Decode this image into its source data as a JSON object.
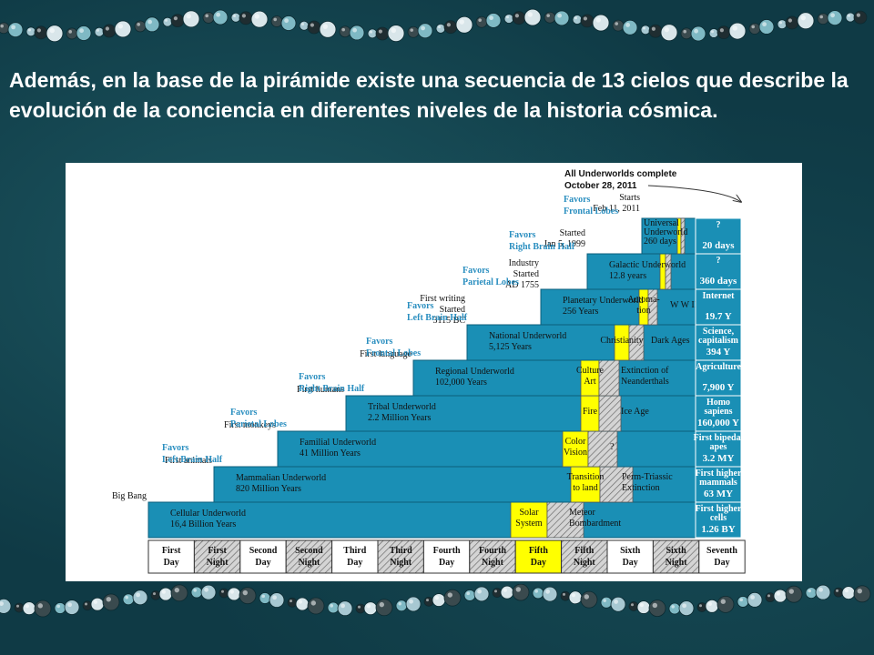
{
  "slide": {
    "title": "Además, en la base de la pirámide existe una secuencia de 13 cielos que describe la evolución de la conciencia en diferentes niveles de la historia cósmica."
  },
  "colors": {
    "background": "#0f3a45",
    "underworld_blue": "#1a8fb5",
    "day_yellow": "#ffff00",
    "night_gray": "#b0b0b0",
    "favors_text": "#2b8fc0",
    "bead_colors": [
      "#d9e6ea",
      "#3a4a4e",
      "#7fb9c4",
      "#a7c8d2",
      "#1f2d31"
    ]
  },
  "diagram": {
    "completion_note": [
      "All Underworlds complete",
      "October 28, 2011"
    ],
    "underworlds": [
      {
        "name": "Cellular Underworld",
        "duration": "16,4 Billion Years",
        "start": "Big Bang",
        "favors": ""
      },
      {
        "name": "Mammalian Underworld",
        "duration": "820 Million Years",
        "start": "First animals",
        "favors": [
          "Favors",
          "Left Brain Half"
        ]
      },
      {
        "name": "Familial Underworld",
        "duration": "41 Million Years",
        "start": "First monkeys",
        "favors": [
          "Favors",
          "Parietal Lobes"
        ]
      },
      {
        "name": "Tribal Underworld",
        "duration": "2.2 Million Years",
        "start": "First humans",
        "favors": [
          "Favors",
          "Right Brain Half"
        ]
      },
      {
        "name": "Regional Underworld",
        "duration": "102,000 Years",
        "start": "First language",
        "favors": [
          "Favors",
          "Frontal Lobes"
        ]
      },
      {
        "name": "National Underworld",
        "duration": "5,125 Years",
        "start": [
          "First writing",
          "Started",
          "3115 BC"
        ],
        "favors": [
          "Favors",
          "Left Brain Half"
        ]
      },
      {
        "name": "Planetary Underworld",
        "duration": "256 Years",
        "start": [
          "Industry",
          "Started",
          "AD 1755"
        ],
        "favors": [
          "Favors",
          "Parietal Lobes"
        ]
      },
      {
        "name": "Galactic Underworld",
        "duration": "12.8 years",
        "start": [
          "Started",
          "Jan 5, 1999"
        ],
        "favors": [
          "Favors",
          "Right Brain Half"
        ]
      },
      {
        "name": [
          "Universal",
          "Underworld",
          "260 days"
        ],
        "duration": "",
        "start": [
          "Starts",
          "Feb 11, 2011"
        ],
        "favors": [
          "Favors",
          "Frontal Lobes"
        ]
      }
    ],
    "fifth_day_events": [
      {
        "text": [
          "Solar",
          "System"
        ]
      },
      {
        "text": [
          "Transition",
          "to land"
        ]
      },
      {
        "text": [
          "Color",
          "Vision"
        ]
      },
      {
        "text": [
          "Fire"
        ]
      },
      {
        "text": [
          "Culture",
          "Art"
        ]
      },
      {
        "text": [
          "Christianity"
        ]
      },
      {
        "text": [
          "Automa-",
          "tion"
        ]
      }
    ],
    "fifth_night_events": [
      {
        "text": [
          "Meteor",
          "Bombardment"
        ]
      },
      {
        "text": [
          "Perm-Triassic",
          "Extinction"
        ]
      },
      {
        "text": [
          "?"
        ]
      },
      {
        "text": [
          "Ice Age"
        ]
      },
      {
        "text": [
          "Extinction of",
          "Neanderthals"
        ]
      },
      {
        "text": [
          "Dark Ages"
        ]
      },
      {
        "text": [
          "W W II"
        ]
      }
    ],
    "results": [
      {
        "lines": [
          "First higher",
          "cells"
        ],
        "value": "1.26 BY"
      },
      {
        "lines": [
          "First higher",
          "mammals"
        ],
        "value": "63 MY"
      },
      {
        "lines": [
          "First bipedal",
          "apes"
        ],
        "value": "3.2 MY"
      },
      {
        "lines": [
          "Homo",
          "sapiens"
        ],
        "value": "160,000 Y"
      },
      {
        "lines": [
          "Agriculture"
        ],
        "value": "7,900 Y"
      },
      {
        "lines": [
          "Science,",
          "capitalism"
        ],
        "value": "394 Y"
      },
      {
        "lines": [
          "Internet"
        ],
        "value": "19.7 Y"
      },
      {
        "lines": [
          "?"
        ],
        "value": "360 days"
      },
      {
        "lines": [
          "?"
        ],
        "value": "20 days"
      }
    ],
    "heavens": [
      {
        "line1": "First",
        "line2": "Day",
        "kind": "day"
      },
      {
        "line1": "First",
        "line2": "Night",
        "kind": "night"
      },
      {
        "line1": "Second",
        "line2": "Day",
        "kind": "day"
      },
      {
        "line1": "Second",
        "line2": "Night",
        "kind": "night"
      },
      {
        "line1": "Third",
        "line2": "Day",
        "kind": "day"
      },
      {
        "line1": "Third",
        "line2": "Night",
        "kind": "night"
      },
      {
        "line1": "Fourth",
        "line2": "Day",
        "kind": "day"
      },
      {
        "line1": "Fourth",
        "line2": "Night",
        "kind": "night"
      },
      {
        "line1": "Fifth",
        "line2": "Day",
        "kind": "fifth-day"
      },
      {
        "line1": "Fifth",
        "line2": "Night",
        "kind": "night"
      },
      {
        "line1": "Sixth",
        "line2": "Day",
        "kind": "day"
      },
      {
        "line1": "Sixth",
        "line2": "Night",
        "kind": "night"
      },
      {
        "line1": "Seventh",
        "line2": "Day",
        "kind": "day"
      }
    ]
  }
}
